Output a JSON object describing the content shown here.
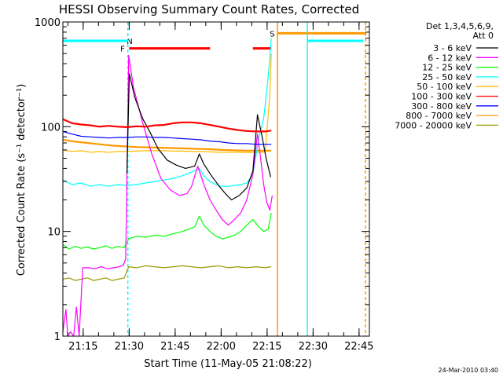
{
  "chart_data": {
    "type": "line",
    "title": "HESSI Observing Summary Count Rates, Corrected",
    "xlabel": "Start Time (11-May-05 21:08:22)",
    "ylabel": "Corrected Count Rate (s⁻¹ detector⁻¹)",
    "y_scale": "log",
    "ylim": [
      1,
      1000
    ],
    "xlim_minutes": [
      0,
      100
    ],
    "x_start": "21:08:22",
    "x_ticks": [
      {
        "label": "21:15",
        "t": 6.63
      },
      {
        "label": "21:30",
        "t": 21.63
      },
      {
        "label": "21:45",
        "t": 36.63
      },
      {
        "label": "22:00",
        "t": 51.63
      },
      {
        "label": "22:15",
        "t": 66.63
      },
      {
        "label": "22:30",
        "t": 81.63
      },
      {
        "label": "22:45",
        "t": 96.63
      }
    ],
    "y_ticks": [
      {
        "label": "1",
        "v": 1
      },
      {
        "label": "10",
        "v": 10
      },
      {
        "label": "100",
        "v": 100
      },
      {
        "label": "1000",
        "v": 1000
      }
    ],
    "legend_header": [
      "Det 1,3,4,5,6,9,",
      "Att 0"
    ],
    "series": [
      {
        "name": "3 - 6 keV",
        "color": "#000000",
        "label_color": "#000000",
        "x": [
          20.9,
          21.7,
          23.5,
          26,
          28.5,
          31,
          34,
          37,
          40,
          43,
          44.5,
          46,
          48.5,
          51,
          53,
          55,
          57.5,
          60,
          62,
          63.5,
          65,
          66.3,
          67.8
        ],
        "y": [
          36,
          320,
          190,
          120,
          88,
          62,
          48,
          43,
          40,
          42,
          55,
          44,
          34,
          27,
          23,
          20,
          22,
          26,
          38,
          130,
          80,
          50,
          33
        ]
      },
      {
        "name": "6 - 12 keV",
        "color": "#ff00ff",
        "label_color": "#ff00ff",
        "x": [
          0,
          1,
          1.6,
          2.5,
          3.5,
          4.4,
          5.3,
          6.5,
          8.5,
          10.5,
          12.5,
          14.5,
          16.5,
          18.5,
          19.8,
          20.5,
          21.5,
          23,
          26,
          29,
          32,
          35,
          38,
          40.5,
          42,
          44,
          46,
          48,
          50,
          52,
          54,
          56,
          58,
          60,
          62,
          63.5,
          64.5,
          65.5,
          66.5,
          67.5,
          68.3
        ],
        "y": [
          1.1,
          1.8,
          1.0,
          1.1,
          1.0,
          1.9,
          1.0,
          4.5,
          4.5,
          4.4,
          4.6,
          4.4,
          4.5,
          4.6,
          4.8,
          5.5,
          480,
          240,
          110,
          55,
          32,
          25,
          22,
          23,
          27,
          42,
          28,
          20,
          16,
          13,
          11.5,
          13,
          15,
          20,
          35,
          85,
          50,
          28,
          19,
          16,
          22
        ]
      },
      {
        "name": "12 - 25 keV",
        "color": "#00ff00",
        "label_color": "#00ff00",
        "x": [
          0,
          2,
          4,
          6,
          8,
          10,
          12,
          14,
          16,
          18,
          20,
          21.5,
          24,
          27,
          30,
          33,
          36,
          39,
          41,
          43,
          44.5,
          46,
          48,
          50,
          52,
          54,
          56,
          58,
          60,
          62,
          64,
          65.5,
          67,
          68
        ],
        "y": [
          7.5,
          6.8,
          7.2,
          6.9,
          7.1,
          6.8,
          7.0,
          7.3,
          6.9,
          7.2,
          7.0,
          8.5,
          9.0,
          8.8,
          9.2,
          9.0,
          9.5,
          10.0,
          10.5,
          11.0,
          14,
          11.5,
          10.0,
          9.0,
          8.5,
          8.8,
          9.2,
          10.0,
          11.5,
          13.0,
          11.0,
          10.0,
          10.5,
          15
        ]
      },
      {
        "name": "25 - 50 keV",
        "color": "#00ffff",
        "label_color": "#00ffff",
        "x": [
          0,
          3,
          6,
          9,
          12,
          15,
          18,
          21,
          24,
          27,
          30,
          33,
          36,
          39,
          42,
          44.5,
          46,
          48,
          50,
          52,
          54,
          56,
          58,
          60,
          62,
          64,
          65.5,
          67,
          68
        ],
        "y": [
          31,
          28,
          29,
          27,
          28,
          27,
          28,
          27.5,
          28,
          29,
          30,
          31,
          32,
          34,
          37,
          40,
          34,
          30,
          28,
          27,
          27,
          27.5,
          28,
          29,
          35,
          80,
          120,
          300,
          700
        ]
      },
      {
        "name": "50 - 100 keV",
        "color": "#ffbb00",
        "label_color": "#ffbb00",
        "x": [
          0,
          3,
          6,
          9,
          12,
          15,
          18,
          21,
          24,
          27,
          30,
          33,
          36,
          39,
          42,
          45,
          48,
          51,
          54,
          57,
          60,
          63,
          66,
          67.5,
          68
        ],
        "y": [
          60,
          58,
          59,
          57,
          58,
          57,
          58,
          58,
          58.5,
          59,
          59,
          59,
          58.5,
          58.5,
          58,
          58,
          57.5,
          57,
          57,
          57,
          56.5,
          56.5,
          57,
          200,
          500
        ]
      },
      {
        "name": "100 - 300 keV",
        "color": "#ff0000",
        "label_color": "#ff0000",
        "x": [
          0,
          3,
          6,
          9,
          12,
          15,
          18,
          21,
          24,
          27,
          30,
          33,
          36,
          39,
          42,
          45,
          48,
          51,
          54,
          57,
          60,
          63,
          66,
          68
        ],
        "y": [
          118,
          108,
          105,
          103,
          100,
          102,
          100,
          99,
          101,
          100,
          103,
          104,
          108,
          110,
          110,
          108,
          104,
          100,
          96,
          93,
          91,
          90,
          90,
          92
        ]
      },
      {
        "name": "300 - 800 keV",
        "color": "#0000ff",
        "label_color": "#0000ff",
        "x": [
          0,
          3,
          6,
          9,
          12,
          15,
          18,
          21,
          24,
          27,
          30,
          33,
          36,
          39,
          42,
          45,
          48,
          51,
          54,
          57,
          60,
          63,
          66,
          68
        ],
        "y": [
          90,
          85,
          81,
          80,
          79,
          78,
          79,
          79,
          80,
          80,
          79,
          79,
          78,
          77,
          76,
          75,
          73,
          72,
          70,
          69,
          69,
          68,
          68,
          68
        ]
      },
      {
        "name": "800 - 7000 keV",
        "color": "#ff9900",
        "label_color": "#ff9900",
        "x": [
          0,
          4,
          8,
          12,
          16,
          20,
          24,
          28,
          32,
          36,
          40,
          44,
          48,
          52,
          56,
          60,
          64,
          68
        ],
        "y": [
          75,
          72,
          70,
          68,
          66,
          65,
          64,
          63.5,
          63,
          62.5,
          62,
          61.5,
          61,
          60,
          59.5,
          59,
          59,
          59
        ]
      },
      {
        "name": "7000 - 20000 keV",
        "color": "#999900",
        "label_color": "#808000",
        "x": [
          0,
          2,
          4,
          6,
          8,
          10,
          12,
          14,
          16,
          18,
          20,
          21.5,
          24,
          27,
          30,
          33,
          36,
          39,
          42,
          45,
          48,
          51,
          54,
          57,
          60,
          63,
          66,
          68
        ],
        "y": [
          3.5,
          3.6,
          3.4,
          3.5,
          3.6,
          3.4,
          3.5,
          3.6,
          3.4,
          3.5,
          3.6,
          4.6,
          4.5,
          4.7,
          4.6,
          4.5,
          4.6,
          4.7,
          4.6,
          4.5,
          4.6,
          4.7,
          4.5,
          4.6,
          4.5,
          4.6,
          4.5,
          4.6
        ]
      }
    ],
    "flags": [
      {
        "label": "N",
        "color": "#00ffff",
        "level": 660,
        "segments": [
          [
            0,
            21.2
          ],
          [
            80,
            98
          ]
        ],
        "label_at": 21.8
      },
      {
        "label": "F",
        "color": "#ff0000",
        "level": 560,
        "segments": [
          [
            21.6,
            48
          ],
          [
            62,
            68
          ]
        ],
        "label_at": 19.5
      },
      {
        "label": "S",
        "color": "#ff9900",
        "level": 780,
        "segments": [
          [
            70,
            99
          ]
        ],
        "label_at": 68.3
      }
    ],
    "vlines": [
      {
        "t": 21.2,
        "color": "#00ffff",
        "style": "dashed"
      },
      {
        "t": 70.0,
        "color": "#ff9900",
        "style": "solid"
      },
      {
        "t": 79.8,
        "color": "#00ffff",
        "style": "solid"
      },
      {
        "t": 98.7,
        "color": "#ff9900",
        "style": "dashed"
      }
    ],
    "footer_date": "24-Mar-2010 03:40"
  }
}
